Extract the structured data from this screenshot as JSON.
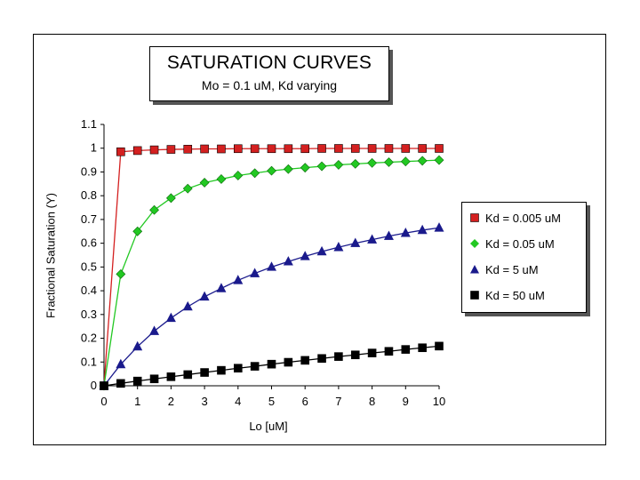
{
  "chart_data": {
    "type": "line",
    "title": "SATURATION CURVES",
    "subtitle": "Mo = 0.1 uM, Kd varying",
    "xlabel": "Lo [uM]",
    "ylabel": "Fractional Saturation (Y)",
    "xlim": [
      0,
      10
    ],
    "ylim": [
      0,
      1.1
    ],
    "xticks": [
      "0",
      "1",
      "2",
      "3",
      "4",
      "5",
      "6",
      "7",
      "8",
      "9",
      "10"
    ],
    "yticks": [
      "0",
      "0.1",
      "0.2",
      "0.3",
      "0.4",
      "0.5",
      "0.6",
      "0.7",
      "0.8",
      "0.9",
      "1",
      "1.1"
    ],
    "x": [
      0,
      0.5,
      1,
      1.5,
      2,
      2.5,
      3,
      3.5,
      4,
      4.5,
      5,
      5.5,
      6,
      6.5,
      7,
      7.5,
      8,
      8.5,
      9,
      9.5,
      10
    ],
    "legend_position": "right",
    "series": [
      {
        "name": "Kd = 0.005 uM",
        "color": "#d42020",
        "marker": "square",
        "values": [
          0,
          0.985,
          0.99,
          0.993,
          0.995,
          0.996,
          0.997,
          0.997,
          0.998,
          0.998,
          0.998,
          0.998,
          0.998,
          0.999,
          0.999,
          0.999,
          0.999,
          0.999,
          0.999,
          0.999,
          0.999
        ]
      },
      {
        "name": "Kd = 0.05 uM",
        "color": "#22c822",
        "marker": "diamond",
        "values": [
          0,
          0.47,
          0.65,
          0.74,
          0.79,
          0.83,
          0.855,
          0.87,
          0.885,
          0.895,
          0.905,
          0.912,
          0.918,
          0.924,
          0.93,
          0.934,
          0.938,
          0.941,
          0.944,
          0.947,
          0.95
        ]
      },
      {
        "name": "Kd = 5 uM",
        "color": "#1a1a8c",
        "marker": "triangle",
        "values": [
          0,
          0.09,
          0.165,
          0.23,
          0.285,
          0.333,
          0.375,
          0.41,
          0.444,
          0.473,
          0.5,
          0.523,
          0.545,
          0.565,
          0.583,
          0.6,
          0.615,
          0.63,
          0.643,
          0.655,
          0.665
        ]
      },
      {
        "name": "Kd = 50 uM",
        "color": "#000000",
        "marker": "square",
        "values": [
          0,
          0.01,
          0.02,
          0.029,
          0.038,
          0.047,
          0.056,
          0.065,
          0.074,
          0.082,
          0.091,
          0.099,
          0.107,
          0.115,
          0.123,
          0.13,
          0.138,
          0.145,
          0.153,
          0.16,
          0.167
        ]
      }
    ]
  }
}
